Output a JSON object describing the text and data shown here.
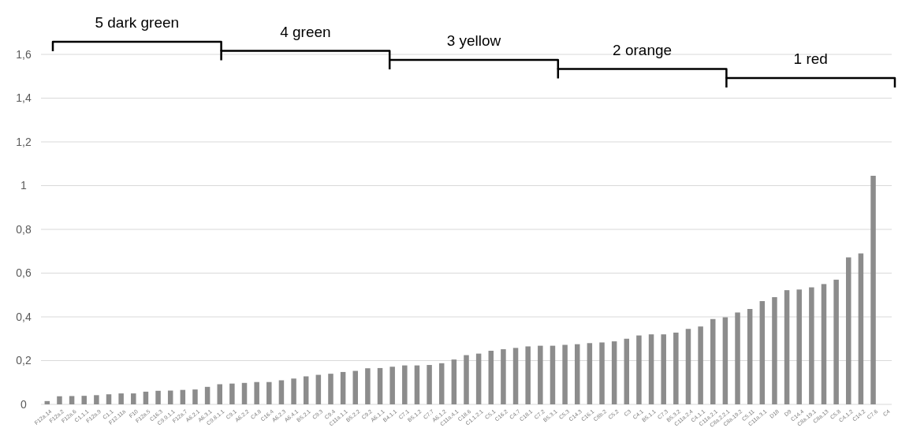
{
  "chart_data": {
    "type": "bar",
    "categories": [
      "F12a.14",
      "F12a.2",
      "F12a.6",
      "C1.1.1",
      "F12a.9",
      "C1.1",
      "F12.11a",
      "F10",
      "F12a.5",
      "C16.3",
      "C9.9.1.1",
      "F12a.7",
      "A6.2.1",
      "A6.3.1",
      "C9.8.1.1",
      "C9.1",
      "A6.2.2",
      "C4.8",
      "C16.4",
      "A6.2.3",
      "A6.4.1",
      "B5.2.1",
      "C9.3",
      "C9.4",
      "C11a.1.1",
      "B5.2.2",
      "C9.2",
      "A6.1.1",
      "B4.1.1",
      "C7.1",
      "B5.1.2",
      "C7.7",
      "A6.1.2",
      "C11a.4.1",
      "C18.6",
      "C1.1.2.1",
      "C5.1",
      "C16.2",
      "C4.7",
      "C18.1",
      "C7.2",
      "B5.3.1",
      "C5.3",
      "C14.3",
      "C16.1",
      "C8b.2",
      "C5.2",
      "C3",
      "C4.1",
      "B5.1.1",
      "C7.3",
      "B5.3.2",
      "C11a.2.4",
      "C4.1.1",
      "C11a.2.1",
      "C8a.2.2.1",
      "C8a.19.2",
      "C5.11",
      "C11a.3.1",
      "D18",
      "D9",
      "C14.4",
      "C8a.19.1",
      "C8a.13",
      "C5.8",
      "C4.1.2",
      "C14.2",
      "C7.6",
      "C4"
    ],
    "values": [
      0.015,
      0.037,
      0.038,
      0.039,
      0.042,
      0.046,
      0.05,
      0.05,
      0.058,
      0.062,
      0.063,
      0.066,
      0.068,
      0.08,
      0.092,
      0.095,
      0.098,
      0.102,
      0.102,
      0.11,
      0.118,
      0.128,
      0.135,
      0.14,
      0.148,
      0.153,
      0.165,
      0.166,
      0.172,
      0.178,
      0.178,
      0.18,
      0.188,
      0.205,
      0.225,
      0.232,
      0.245,
      0.252,
      0.258,
      0.265,
      0.268,
      0.268,
      0.272,
      0.275,
      0.28,
      0.283,
      0.288,
      0.3,
      0.315,
      0.32,
      0.32,
      0.328,
      0.345,
      0.356,
      0.39,
      0.398,
      0.42,
      0.436,
      0.472,
      0.49,
      0.522,
      0.525,
      0.535,
      0.55,
      0.57,
      0.672,
      0.69,
      1.045,
      null
    ],
    "color": "#8c8c8c",
    "ylim": [
      0,
      1.6
    ],
    "yticks": [
      0,
      {
        "value": 0.2,
        "label": "0,2"
      },
      {
        "value": 0.4,
        "label": "0,4"
      },
      {
        "value": 0.6,
        "label": "0,6"
      },
      {
        "value": 0.8,
        "label": "0,8"
      },
      1,
      {
        "value": 1.2,
        "label": "1,2"
      },
      {
        "value": 1.4,
        "label": "1,4"
      },
      {
        "value": 1.6,
        "label": "1,6"
      }
    ],
    "grid": "y",
    "annotations": [
      "5 dark green",
      "4 green",
      "3 yellow",
      "2 orange",
      "1 red"
    ]
  }
}
